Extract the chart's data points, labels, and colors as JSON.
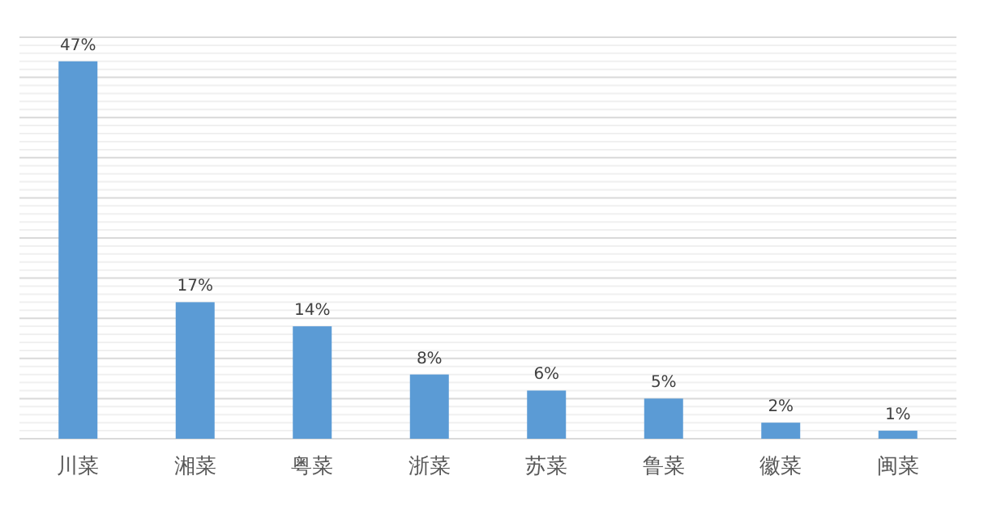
{
  "chart_data": {
    "type": "bar",
    "categories": [
      "川菜",
      "湘菜",
      "粤菜",
      "浙菜",
      "苏菜",
      "鲁菜",
      "徽菜",
      "闽菜"
    ],
    "values": [
      47,
      17,
      14,
      8,
      6,
      5,
      2,
      1
    ],
    "value_labels": [
      "47%",
      "17%",
      "14%",
      "8%",
      "6%",
      "5%",
      "2%",
      "1%"
    ],
    "color": "#5b9bd5",
    "ylim": [
      0,
      50
    ],
    "yticks": [
      {
        "value": 0,
        "label": null
      },
      {
        "value": 1,
        "label": null
      },
      {
        "value": 2,
        "label": null
      },
      {
        "value": 3,
        "label": null
      },
      {
        "value": 4,
        "label": null
      },
      {
        "value": 5,
        "label": null
      },
      {
        "value": 6,
        "label": null
      },
      {
        "value": 7,
        "label": null
      },
      {
        "value": 8,
        "label": null
      },
      {
        "value": 9,
        "label": null
      },
      {
        "value": 10,
        "label": null
      },
      {
        "value": 11,
        "label": null
      },
      {
        "value": 12,
        "label": null
      },
      {
        "value": 13,
        "label": null
      },
      {
        "value": 14,
        "label": null
      },
      {
        "value": 15,
        "label": null
      },
      {
        "value": 16,
        "label": null
      },
      {
        "value": 17,
        "label": null
      },
      {
        "value": 18,
        "label": null
      },
      {
        "value": 19,
        "label": null
      },
      {
        "value": 20,
        "label": null
      },
      {
        "value": 21,
        "label": null
      },
      {
        "value": 22,
        "label": null
      },
      {
        "value": 23,
        "label": null
      },
      {
        "value": 24,
        "label": null
      },
      {
        "value": 25,
        "label": null
      },
      {
        "value": 26,
        "label": null
      },
      {
        "value": 27,
        "label": null
      },
      {
        "value": 28,
        "label": null
      },
      {
        "value": 29,
        "label": null
      },
      {
        "value": 30,
        "label": null
      },
      {
        "value": 31,
        "label": null
      },
      {
        "value": 32,
        "label": null
      },
      {
        "value": 33,
        "label": null
      },
      {
        "value": 34,
        "label": null
      },
      {
        "value": 35,
        "label": null
      },
      {
        "value": 36,
        "label": null
      },
      {
        "value": 37,
        "label": null
      },
      {
        "value": 38,
        "label": null
      },
      {
        "value": 39,
        "label": null
      },
      {
        "value": 40,
        "label": null
      },
      {
        "value": 41,
        "label": null
      },
      {
        "value": 42,
        "label": null
      },
      {
        "value": 43,
        "label": null
      },
      {
        "value": 44,
        "label": null
      },
      {
        "value": 45,
        "label": null
      },
      {
        "value": 46,
        "label": null
      },
      {
        "value": 47,
        "label": null
      },
      {
        "value": 48,
        "label": null
      },
      {
        "value": 49,
        "label": null
      },
      {
        "value": 50,
        "label": null
      }
    ],
    "grid": "y",
    "tick_labels": "x"
  }
}
